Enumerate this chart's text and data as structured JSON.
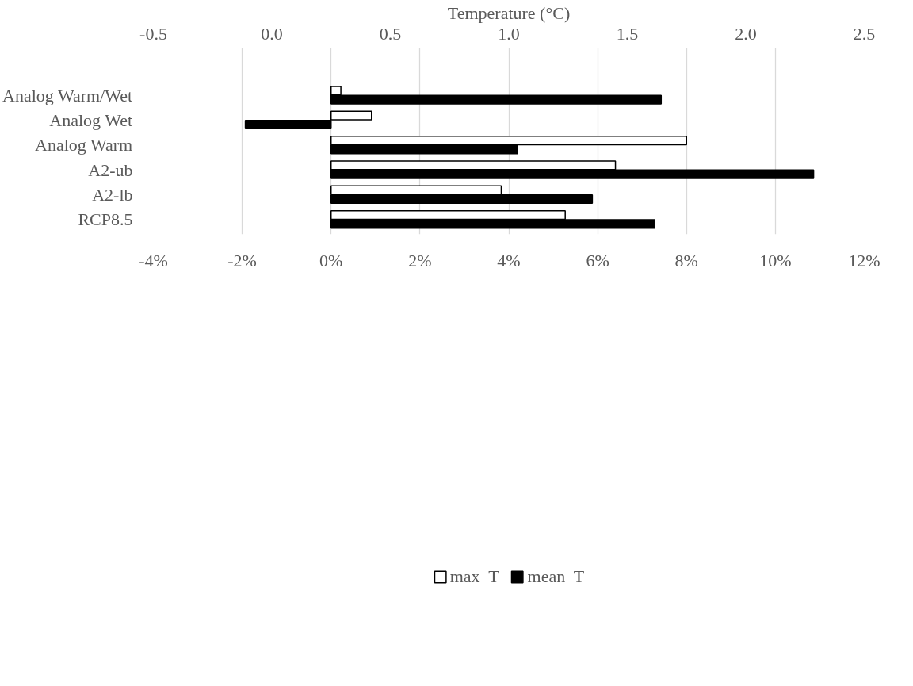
{
  "chart_data": {
    "type": "bar",
    "orientation": "horizontal",
    "categories": [
      "Analog Warm/Wet",
      "Analog Wet",
      "Analog Warm",
      "A2-ub",
      "A2-lb",
      "RCP8.5"
    ],
    "series": [
      {
        "name": "max  T",
        "color": "#ffffff",
        "values": [
          0.22,
          0.91,
          8.0,
          6.4,
          3.83,
          5.27
        ]
      },
      {
        "name": "mean  T",
        "color": "#000000",
        "values": [
          7.43,
          -1.93,
          4.2,
          10.86,
          5.88,
          7.28
        ]
      }
    ],
    "xlim": [
      -4,
      12
    ],
    "xticks": [
      {
        "value": -4,
        "label": "-4%"
      },
      {
        "value": -2,
        "label": "-2%"
      },
      {
        "value": 0,
        "label": "0%"
      },
      {
        "value": 2,
        "label": "2%"
      },
      {
        "value": 4,
        "label": "4%"
      },
      {
        "value": 6,
        "label": "6%"
      },
      {
        "value": 8,
        "label": "8%"
      },
      {
        "value": 10,
        "label": "10%"
      },
      {
        "value": 12,
        "label": "12%"
      }
    ],
    "x2label": "Temperature (°C)",
    "x2lim": [
      -0.5,
      2.5
    ],
    "x2ticks": [
      {
        "value": -0.5,
        "label": "-0.5"
      },
      {
        "value": 0,
        "label": "0.0"
      },
      {
        "value": 0.5,
        "label": "0.5"
      },
      {
        "value": 1,
        "label": "1.0"
      },
      {
        "value": 1.5,
        "label": "1.5"
      },
      {
        "value": 2,
        "label": "2.0"
      },
      {
        "value": 2.5,
        "label": "2.5"
      }
    ],
    "grid": "x",
    "legend": "bottom"
  }
}
